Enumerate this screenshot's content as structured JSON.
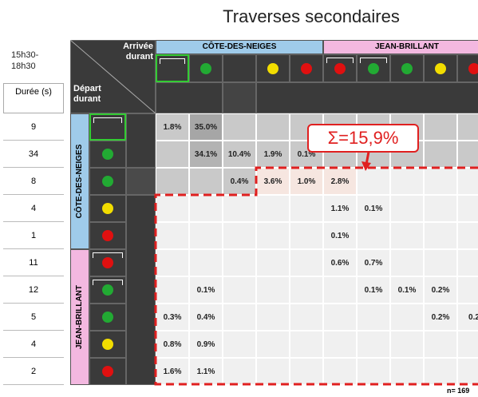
{
  "title": "Traverses secondaires",
  "period": "15h30-18h30",
  "duration_header": "Durée (s)",
  "arrival_label": "Arrivée durant",
  "departure_label": "Départ durant",
  "groups": [
    "CÔTE-DES-NEIGES",
    "JEAN-BRILLANT"
  ],
  "durations": [
    "9",
    "34",
    "8",
    "4",
    "1",
    "11",
    "12",
    "5",
    "4",
    "2"
  ],
  "cells": [
    [
      "1.8%",
      "35.0%",
      null,
      null,
      null,
      null,
      null,
      null,
      null,
      null
    ],
    [
      null,
      "34.1%",
      "10.4%",
      "1.9%",
      "0.1%",
      null,
      null,
      null,
      null,
      null
    ],
    [
      null,
      null,
      "0.4%",
      "3.6%",
      "1.0%",
      "2.8%",
      null,
      null,
      null,
      null
    ],
    [
      null,
      null,
      null,
      null,
      null,
      "1.1%",
      "0.1%",
      null,
      null,
      null
    ],
    [
      null,
      null,
      null,
      null,
      null,
      "0.1%",
      null,
      null,
      null,
      null
    ],
    [
      null,
      null,
      null,
      null,
      null,
      "0.6%",
      "0.7%",
      null,
      null,
      null
    ],
    [
      null,
      "0.1%",
      null,
      null,
      null,
      null,
      "0.1%",
      "0.1%",
      "0.2%",
      null
    ],
    [
      "0.3%",
      "0.4%",
      null,
      null,
      null,
      null,
      null,
      null,
      "0.2%",
      "0.2"
    ],
    [
      "0.8%",
      "0.9%",
      null,
      null,
      null,
      null,
      null,
      null,
      null,
      null
    ],
    [
      "1.6%",
      "1.1%",
      null,
      null,
      null,
      null,
      null,
      null,
      null,
      null
    ]
  ],
  "callout": "Σ=15,9%",
  "sample": "n= 169"
}
